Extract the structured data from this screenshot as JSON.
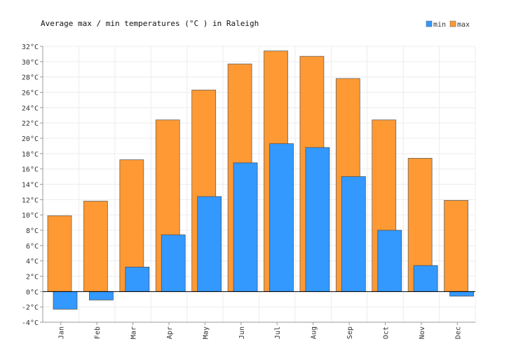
{
  "chart_data": {
    "type": "bar",
    "title": "Average max / min temperatures (°C ) in Raleigh",
    "xlabel": "",
    "ylabel": "",
    "categories": [
      "Jan",
      "Feb",
      "Mar",
      "Apr",
      "May",
      "Jun",
      "Jul",
      "Aug",
      "Sep",
      "Oct",
      "Nov",
      "Dec"
    ],
    "series": [
      {
        "name": "max",
        "color": "#ff9933",
        "values": [
          9.9,
          11.8,
          17.2,
          22.4,
          26.3,
          29.7,
          31.4,
          30.7,
          27.8,
          22.4,
          17.4,
          11.9
        ]
      },
      {
        "name": "min",
        "color": "#3399ff",
        "values": [
          -2.3,
          -1.1,
          3.2,
          7.4,
          12.4,
          16.8,
          19.3,
          18.8,
          15.0,
          8.0,
          3.4,
          -0.6
        ]
      }
    ],
    "ylim": [
      -4,
      32
    ],
    "yticks": [
      "-4°C",
      "-2°C",
      "0°C",
      "2°C",
      "4°C",
      "6°C",
      "8°C",
      "10°C",
      "12°C",
      "14°C",
      "16°C",
      "18°C",
      "20°C",
      "22°C",
      "24°C",
      "26°C",
      "28°C",
      "30°C",
      "32°C"
    ],
    "grid": true,
    "legend": {
      "position": "top-right",
      "items": [
        "min",
        "max"
      ]
    }
  }
}
